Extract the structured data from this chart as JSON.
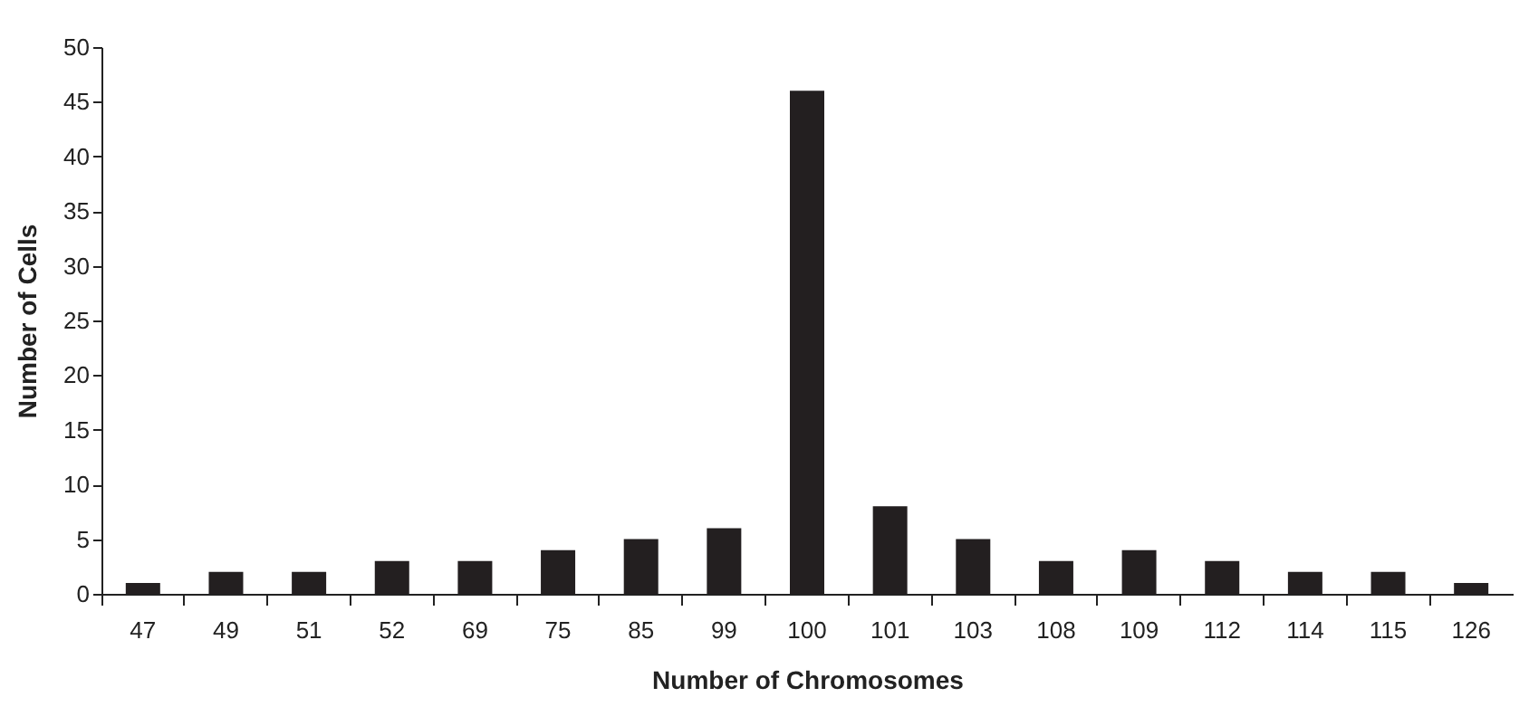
{
  "chart_data": {
    "type": "bar",
    "xlabel": "Number of Chromosomes",
    "ylabel": "Number of Cells",
    "categories": [
      "47",
      "49",
      "51",
      "52",
      "69",
      "75",
      "85",
      "99",
      "100",
      "101",
      "103",
      "108",
      "109",
      "112",
      "114",
      "115",
      "126"
    ],
    "values": [
      1,
      2,
      2,
      3,
      3,
      4,
      5,
      6,
      46,
      8,
      5,
      3,
      4,
      3,
      2,
      2,
      1
    ],
    "color": "#231f20",
    "ylim": [
      0,
      50
    ],
    "yticks": [
      0,
      5,
      10,
      15,
      20,
      25,
      30,
      35,
      40,
      45,
      50
    ],
    "grid": false
  }
}
